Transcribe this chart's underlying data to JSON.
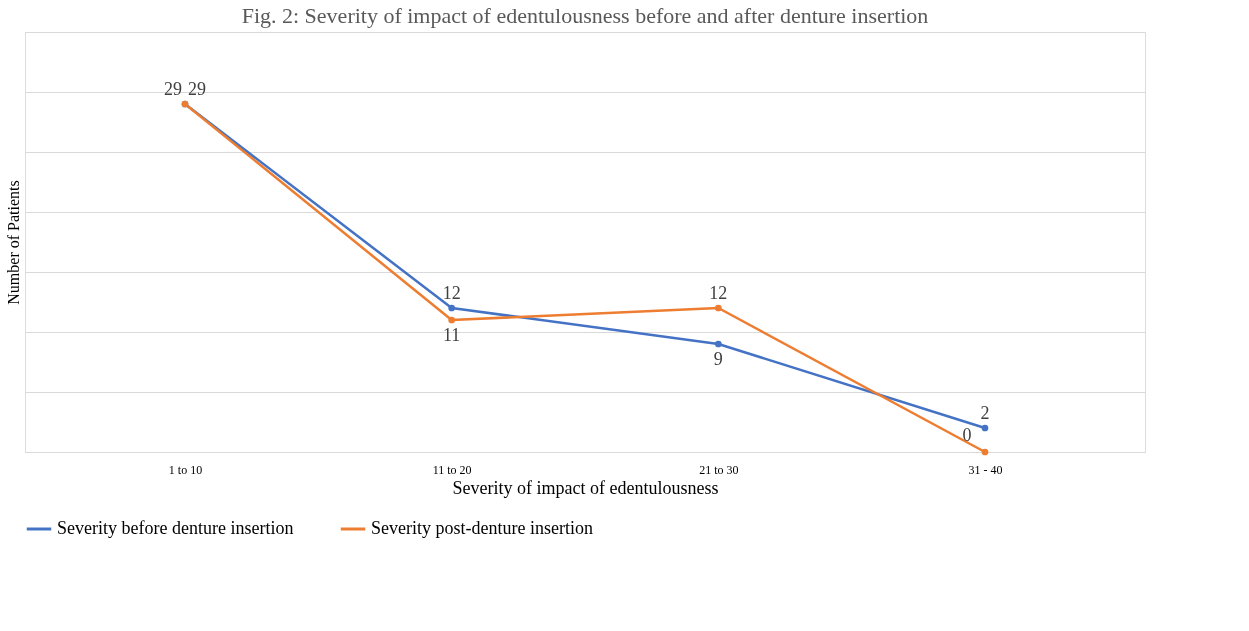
{
  "chart_data": {
    "type": "line",
    "title": "Fig. 2: Severity of impact of edentulousness before and after denture insertion",
    "xlabel": "Severity of impact of edentulousness",
    "ylabel": "Number of Patients",
    "categories": [
      "1 to 10",
      "11 to 20",
      "21 to 30",
      "31 - 40"
    ],
    "series": [
      {
        "name": "Severity before denture insertion",
        "color": "#4472c4",
        "values": [
          29,
          12,
          9,
          2
        ]
      },
      {
        "name": "Severity post-denture insertion",
        "color": "#ed7d31",
        "values": [
          29,
          11,
          12,
          0
        ]
      }
    ],
    "ylim": [
      0,
      35
    ],
    "yticks": [
      {
        "value": 0,
        "label": null
      },
      {
        "value": 5,
        "label": null
      },
      {
        "value": 10,
        "label": null
      },
      {
        "value": 15,
        "label": null
      },
      {
        "value": 20,
        "label": null
      },
      {
        "value": 25,
        "label": null
      },
      {
        "value": 30,
        "label": null
      },
      {
        "value": 35,
        "label": null
      }
    ],
    "tick_labels": "x",
    "grid": "y",
    "legend": "bottom",
    "marker": "circle",
    "line_style": "solid",
    "data_labels": true
  }
}
